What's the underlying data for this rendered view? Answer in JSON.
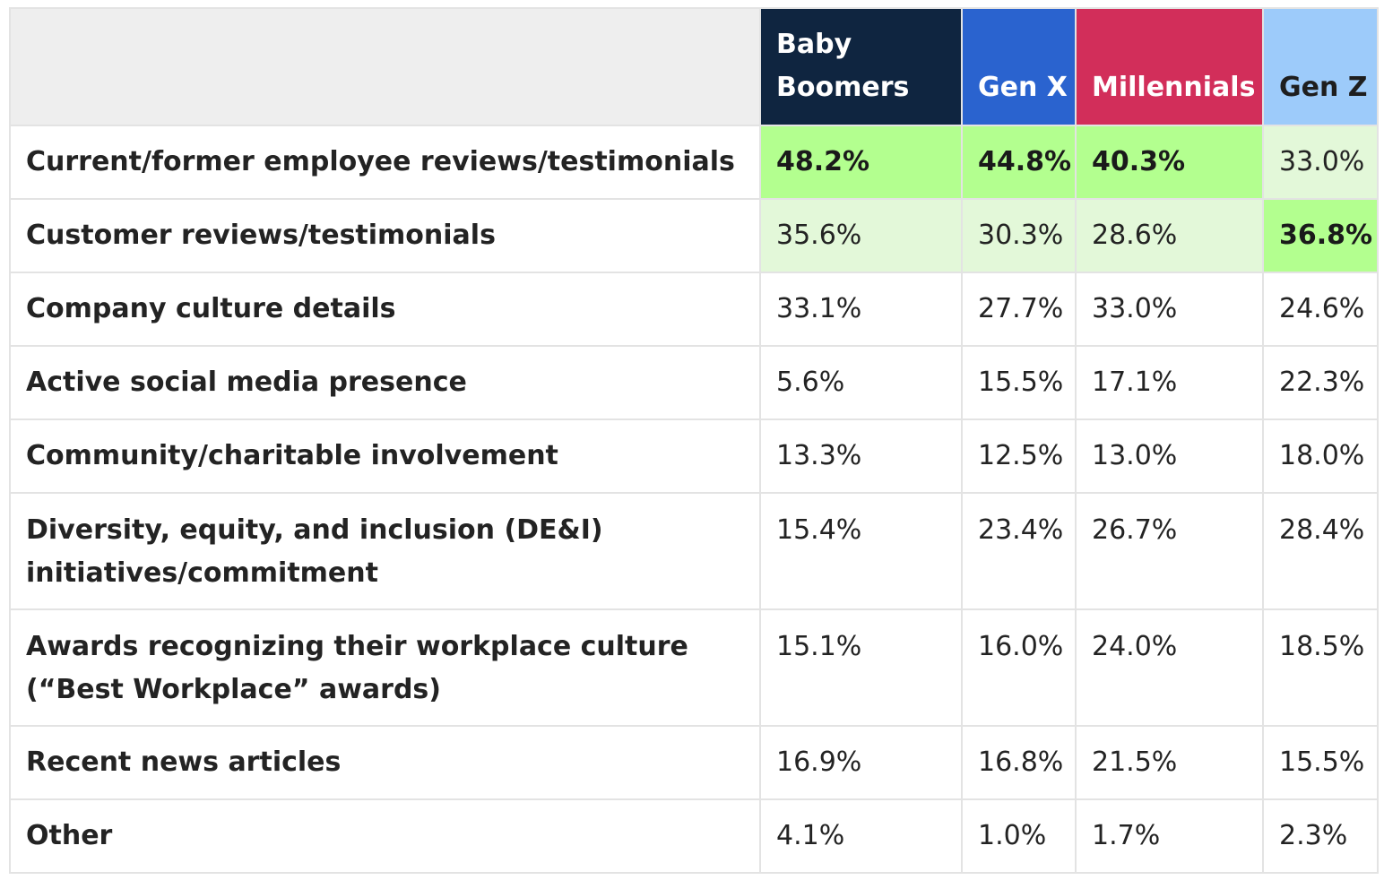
{
  "colors": {
    "header_corner": "#eeeeee",
    "highlight_high": "#b3ff8f",
    "highlight_mid": "#e3f8d9",
    "border": "#e3e3e3"
  },
  "header": {
    "columns": [
      {
        "label": "Baby Boomers",
        "bg": "#0f2540",
        "fg": "#ffffff"
      },
      {
        "label": "Gen X",
        "bg": "#2a63cf",
        "fg": "#ffffff"
      },
      {
        "label": "Millennials",
        "bg": "#d22e5a",
        "fg": "#ffffff"
      },
      {
        "label": "Gen Z",
        "bg": "#9dcbfa",
        "fg": "#1e1e1e"
      }
    ]
  },
  "rows": [
    {
      "label": "Current/former employee reviews/testimonials",
      "values": [
        "48.2%",
        "44.8%",
        "40.3%",
        "33.0%"
      ],
      "highlight": [
        "high",
        "high",
        "high",
        "mid"
      ],
      "bold": [
        true,
        true,
        true,
        false
      ]
    },
    {
      "label": "Customer reviews/testimonials",
      "values": [
        "35.6%",
        "30.3%",
        "28.6%",
        "36.8%"
      ],
      "highlight": [
        "mid",
        "mid",
        "mid",
        "high"
      ],
      "bold": [
        false,
        false,
        false,
        true
      ]
    },
    {
      "label": "Company culture details",
      "values": [
        "33.1%",
        "27.7%",
        "33.0%",
        "24.6%"
      ],
      "highlight": [
        "none",
        "none",
        "none",
        "none"
      ],
      "bold": [
        false,
        false,
        false,
        false
      ]
    },
    {
      "label": "Active social media presence",
      "values": [
        "5.6%",
        "15.5%",
        "17.1%",
        "22.3%"
      ],
      "highlight": [
        "none",
        "none",
        "none",
        "none"
      ],
      "bold": [
        false,
        false,
        false,
        false
      ]
    },
    {
      "label": "Community/charitable involvement",
      "values": [
        "13.3%",
        "12.5%",
        "13.0%",
        "18.0%"
      ],
      "highlight": [
        "none",
        "none",
        "none",
        "none"
      ],
      "bold": [
        false,
        false,
        false,
        false
      ]
    },
    {
      "label": "Diversity, equity, and inclusion (DE&I) initiatives/commitment",
      "values": [
        "15.4%",
        "23.4%",
        "26.7%",
        "28.4%"
      ],
      "highlight": [
        "none",
        "none",
        "none",
        "none"
      ],
      "bold": [
        false,
        false,
        false,
        false
      ],
      "multiline": true
    },
    {
      "label": "Awards recognizing their workplace culture (“Best Workplace” awards)",
      "values": [
        "15.1%",
        "16.0%",
        "24.0%",
        "18.5%"
      ],
      "highlight": [
        "none",
        "none",
        "none",
        "none"
      ],
      "bold": [
        false,
        false,
        false,
        false
      ],
      "multiline": true
    },
    {
      "label": "Recent news articles",
      "values": [
        "16.9%",
        "16.8%",
        "21.5%",
        "15.5%"
      ],
      "highlight": [
        "none",
        "none",
        "none",
        "none"
      ],
      "bold": [
        false,
        false,
        false,
        false
      ]
    },
    {
      "label": "Other",
      "values": [
        "4.1%",
        "1.0%",
        "1.7%",
        "2.3%"
      ],
      "highlight": [
        "none",
        "none",
        "none",
        "none"
      ],
      "bold": [
        false,
        false,
        false,
        false
      ]
    }
  ]
}
